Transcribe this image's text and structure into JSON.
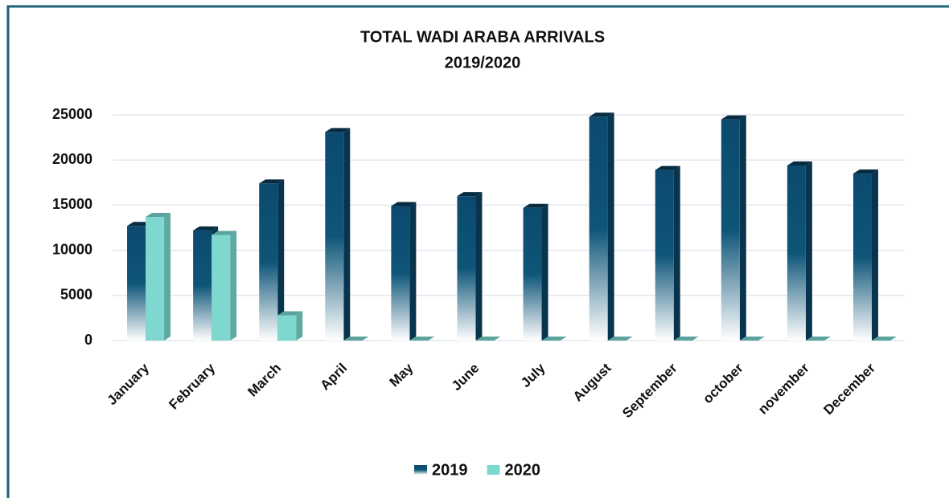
{
  "chart_data": {
    "type": "bar",
    "title": "TOTAL WADI ARABA ARRIVALS",
    "subtitle": "2019/2020",
    "categories": [
      "January",
      "February",
      "March",
      "April",
      "May",
      "June",
      "July",
      "August",
      "September",
      "october",
      "november",
      "December"
    ],
    "series": [
      {
        "name": "2019",
        "color": "#0b4a6e",
        "values": [
          12700,
          12200,
          17400,
          23100,
          14900,
          16000,
          14700,
          24800,
          18900,
          24500,
          19400,
          18500
        ]
      },
      {
        "name": "2020",
        "color": "#7fd8d0",
        "values": [
          13700,
          11700,
          2800,
          0,
          0,
          0,
          0,
          0,
          0,
          0,
          0,
          0
        ]
      }
    ],
    "ylim": [
      0,
      25000
    ],
    "yticks": [
      0,
      5000,
      10000,
      15000,
      20000,
      25000
    ],
    "grid": true,
    "legend": "bottom"
  }
}
